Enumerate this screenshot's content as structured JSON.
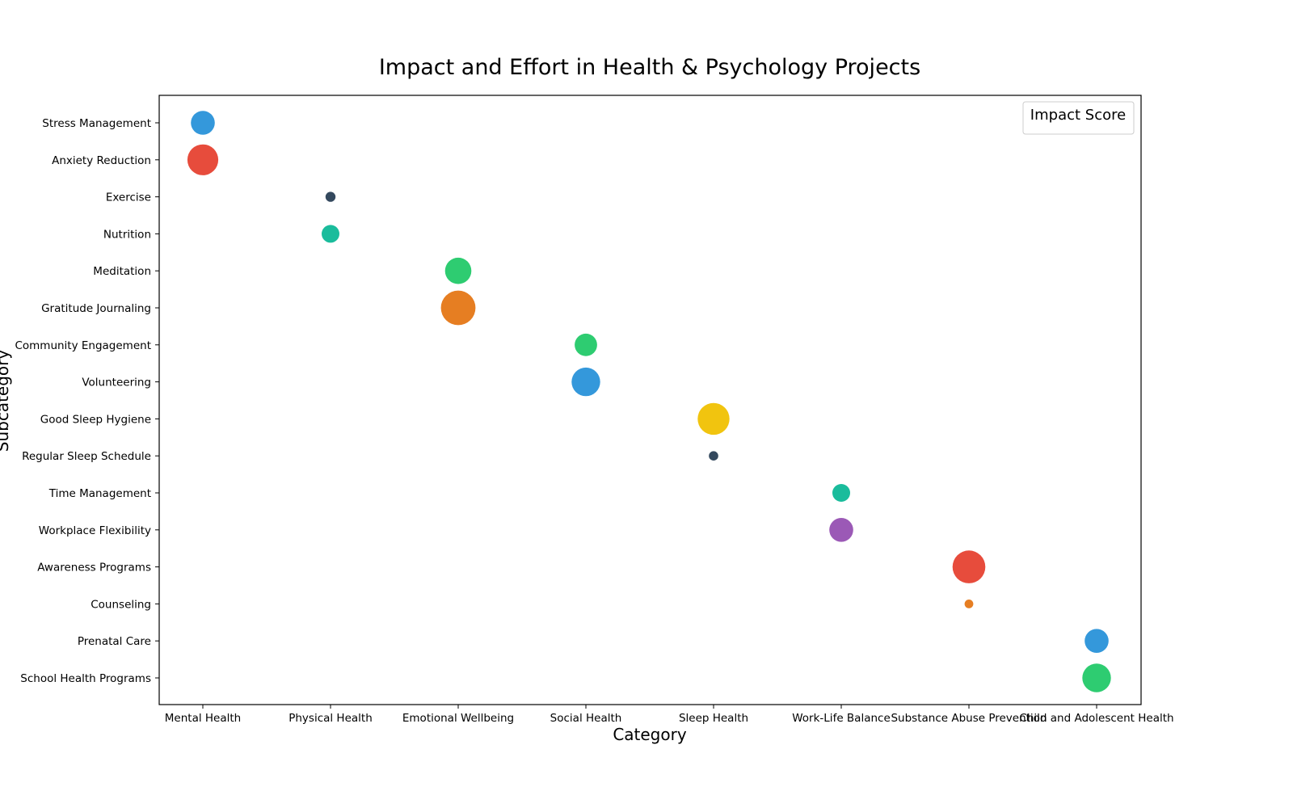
{
  "chart_data": {
    "type": "scatter",
    "title": "Impact and Effort in Health & Psychology Projects",
    "xlabel": "Category",
    "ylabel": "Subcategory",
    "legend": {
      "title": "Impact Score",
      "placement": "top-right"
    },
    "grid": false,
    "categories": [
      "Mental Health",
      "Physical Health",
      "Emotional Wellbeing",
      "Social Health",
      "Sleep Health",
      "Work-Life Balance",
      "Substance Abuse Prevention",
      "Child and Adolescent Health"
    ],
    "subcategories": [
      "Stress Management",
      "Anxiety Reduction",
      "Exercise",
      "Nutrition",
      "Meditation",
      "Gratitude Journaling",
      "Community Engagement",
      "Volunteering",
      "Good Sleep Hygiene",
      "Regular Sleep Schedule",
      "Time Management",
      "Workplace Flexibility",
      "Awareness Programs",
      "Counseling",
      "Prenatal Care",
      "School Health Programs"
    ],
    "points": [
      {
        "x": "Mental Health",
        "y": "Stress Management",
        "size": 45,
        "color": "#3498db"
      },
      {
        "x": "Mental Health",
        "y": "Anxiety Reduction",
        "size": 75,
        "color": "#e74c3c"
      },
      {
        "x": "Physical Health",
        "y": "Exercise",
        "size": 8,
        "color": "#34495e"
      },
      {
        "x": "Physical Health",
        "y": "Nutrition",
        "size": 25,
        "color": "#1abc9c"
      },
      {
        "x": "Emotional Wellbeing",
        "y": "Meditation",
        "size": 55,
        "color": "#2ecc71"
      },
      {
        "x": "Emotional Wellbeing",
        "y": "Gratitude Journaling",
        "size": 95,
        "color": "#e67e22"
      },
      {
        "x": "Social Health",
        "y": "Community Engagement",
        "size": 40,
        "color": "#2ecc71"
      },
      {
        "x": "Social Health",
        "y": "Volunteering",
        "size": 65,
        "color": "#3498db"
      },
      {
        "x": "Sleep Health",
        "y": "Good Sleep Hygiene",
        "size": 80,
        "color": "#f1c40f"
      },
      {
        "x": "Sleep Health",
        "y": "Regular Sleep Schedule",
        "size": 7,
        "color": "#34495e"
      },
      {
        "x": "Work-Life Balance",
        "y": "Time Management",
        "size": 25,
        "color": "#1abc9c"
      },
      {
        "x": "Work-Life Balance",
        "y": "Workplace Flexibility",
        "size": 45,
        "color": "#9b59b6"
      },
      {
        "x": "Substance Abuse Prevention",
        "y": "Awareness Programs",
        "size": 85,
        "color": "#e74c3c"
      },
      {
        "x": "Substance Abuse Prevention",
        "y": "Counseling",
        "size": 6,
        "color": "#e67e22"
      },
      {
        "x": "Child and Adolescent Health",
        "y": "Prenatal Care",
        "size": 45,
        "color": "#3498db"
      },
      {
        "x": "Child and Adolescent Health",
        "y": "School Health Programs",
        "size": 65,
        "color": "#2ecc71"
      }
    ]
  }
}
